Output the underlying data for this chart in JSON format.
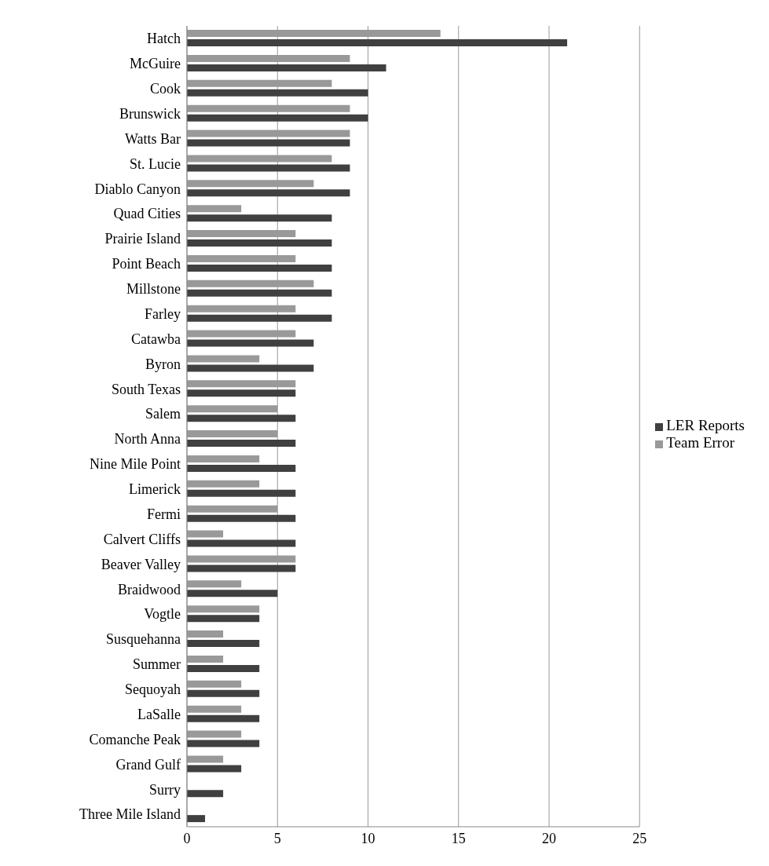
{
  "chart_data": {
    "type": "bar",
    "orientation": "horizontal",
    "categories": [
      "Hatch",
      "McGuire",
      "Cook",
      "Brunswick",
      "Watts Bar",
      "St. Lucie",
      "Diablo Canyon",
      "Quad Cities",
      "Prairie Island",
      "Point Beach",
      "Millstone",
      "Farley",
      "Catawba",
      "Byron",
      "South Texas",
      "Salem",
      "North Anna",
      "Nine Mile Point",
      "Limerick",
      "Fermi",
      "Calvert Cliffs",
      "Beaver Valley",
      "Braidwood",
      "Vogtle",
      "Susquehanna",
      "Summer",
      "Sequoyah",
      "LaSalle",
      "Comanche Peak",
      "Grand Gulf",
      "Surry",
      "Three Mile Island"
    ],
    "series": [
      {
        "name": "Team Error",
        "color": "#999999",
        "values": [
          14,
          9,
          8,
          9,
          9,
          8,
          7,
          3,
          6,
          6,
          7,
          6,
          6,
          4,
          6,
          5,
          5,
          4,
          4,
          5,
          2,
          6,
          3,
          4,
          2,
          2,
          3,
          3,
          3,
          2,
          0,
          0
        ]
      },
      {
        "name": "LER Reports",
        "color": "#404040",
        "values": [
          21,
          11,
          10,
          10,
          9,
          9,
          9,
          8,
          8,
          8,
          8,
          8,
          7,
          7,
          6,
          6,
          6,
          6,
          6,
          6,
          6,
          6,
          5,
          4,
          4,
          4,
          4,
          4,
          4,
          3,
          2,
          1
        ]
      }
    ],
    "xlim": [
      0,
      25
    ],
    "xticks": [
      0,
      5,
      10,
      15,
      20,
      25
    ],
    "grid": "x",
    "legend": "right"
  }
}
